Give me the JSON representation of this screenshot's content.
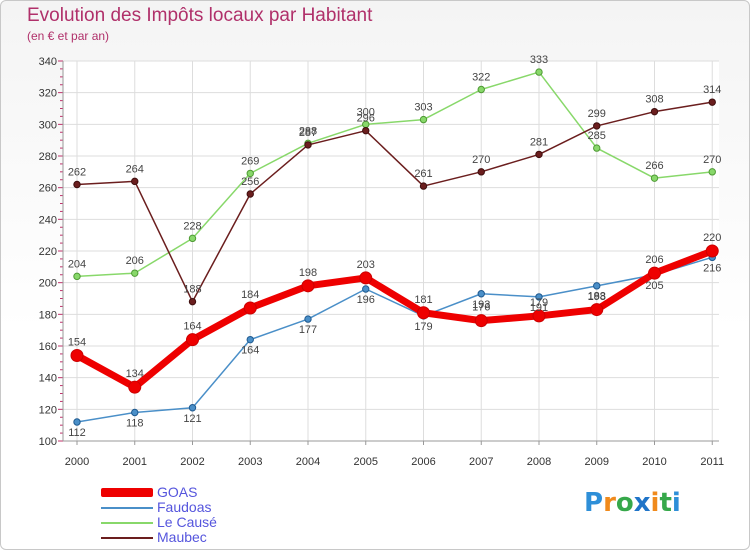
{
  "title": "Evolution des Impôts locaux par Habitant",
  "subtitle": "(en € et par an)",
  "brand": {
    "p": "P",
    "r": "r",
    "o": "o",
    "x": "x",
    "i1": "i",
    "t": "t",
    "i2": "i"
  },
  "colors": {
    "title": "#b0306a",
    "legend_text": "#5555dd",
    "GOAS": "#ee0000",
    "Faudoas": "#4a8fc8",
    "Le Causé": "#88d86a",
    "Maubec": "#6b1e1e"
  },
  "chart_data": {
    "type": "line",
    "title": "Evolution des Impôts locaux par Habitant",
    "subtitle": "(en € et par an)",
    "xlabel": "",
    "ylabel": "",
    "categories": [
      "2000",
      "2001",
      "2002",
      "2003",
      "2004",
      "2005",
      "2006",
      "2007",
      "2008",
      "2009",
      "2010",
      "2011"
    ],
    "ylim": [
      100,
      340
    ],
    "yticks": [
      100,
      120,
      140,
      160,
      180,
      200,
      220,
      240,
      260,
      280,
      300,
      320,
      340
    ],
    "grid": true,
    "legend_position": "bottom-left",
    "series": [
      {
        "name": "GOAS",
        "values": [
          154,
          134,
          164,
          184,
          198,
          203,
          181,
          176,
          179,
          183,
          206,
          220
        ]
      },
      {
        "name": "Faudoas",
        "values": [
          112,
          118,
          121,
          164,
          177,
          196,
          179,
          193,
          191,
          198,
          205,
          216
        ]
      },
      {
        "name": "Le Causé",
        "values": [
          204,
          206,
          228,
          269,
          288,
          300,
          303,
          322,
          333,
          285,
          266,
          270
        ]
      },
      {
        "name": "Maubec",
        "values": [
          262,
          264,
          188,
          256,
          287,
          296,
          261,
          270,
          281,
          299,
          308,
          314
        ]
      }
    ]
  }
}
